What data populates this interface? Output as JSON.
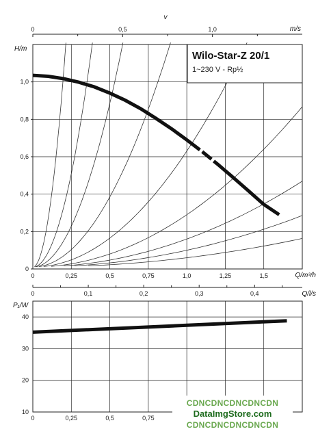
{
  "chart_data": [
    {
      "type": "line",
      "title": "Wilo-Star-Z 20/1",
      "subtitle": "1~230 V - Rp½",
      "xlabel": "Q/m³/h",
      "ylabel": "H/m",
      "xlim": [
        0,
        1.75
      ],
      "ylim": [
        0,
        1.2
      ],
      "x_ticks": [
        0,
        0.25,
        0.5,
        0.75,
        1.0,
        1.25,
        1.5
      ],
      "x_tick_labels": [
        "0",
        "0,25",
        "0,5",
        "0,75",
        "1,0",
        "1,25",
        "1,5"
      ],
      "y_ticks": [
        0,
        0.2,
        0.4,
        0.6,
        0.8,
        1.0
      ],
      "y_tick_labels": [
        "0",
        "0,2",
        "0,4",
        "0,6",
        "0,8",
        "1,0"
      ],
      "grid": true,
      "top_axis": {
        "label": "v",
        "unit": "m/s",
        "max": 1.5,
        "ticks": [
          0,
          0.5,
          1.0
        ],
        "tick_labels": [
          "0",
          "0,5",
          "1,0"
        ]
      },
      "secondary_x_axis": {
        "label": "Q/l/s",
        "max": 0.486,
        "ticks": [
          0,
          0.1,
          0.2,
          0.3,
          0.4
        ],
        "tick_labels": [
          "0",
          "0,1",
          "0,2",
          "0,3",
          "0,4"
        ]
      },
      "series": [
        {
          "x": [
            0,
            0.1,
            0.2,
            0.3,
            0.4,
            0.5,
            0.6,
            0.7,
            0.8,
            0.9,
            1.0,
            1.1,
            1.2,
            1.3,
            1.4,
            1.5,
            1.6
          ],
          "y": [
            1.035,
            1.03,
            1.017,
            0.998,
            0.973,
            0.94,
            0.902,
            0.857,
            0.805,
            0.75,
            0.69,
            0.627,
            0.56,
            0.49,
            0.418,
            0.345,
            0.29
          ]
        }
      ],
      "system_curves": [
        {
          "c": 0.05
        },
        {
          "c": 0.09
        },
        {
          "c": 0.15
        },
        {
          "c": 0.28
        },
        {
          "c": 0.62
        },
        {
          "c": 1.5
        },
        {
          "c": 3.5
        },
        {
          "c": 8
        },
        {
          "c": 26
        }
      ]
    },
    {
      "type": "line",
      "xlabel": "",
      "ylabel": "P₁/W",
      "xlim": [
        0,
        1.75
      ],
      "ylim": [
        10,
        45
      ],
      "x_ticks": [
        0,
        0.25,
        0.5,
        0.75
      ],
      "x_tick_labels": [
        "0",
        "0,25",
        "0,5",
        "0,75"
      ],
      "y_ticks": [
        10,
        20,
        30,
        40
      ],
      "y_tick_labels": [
        "10",
        "20",
        "30",
        "40"
      ],
      "grid": true,
      "series": [
        {
          "x": [
            0,
            1.65
          ],
          "y": [
            35.2,
            38.8
          ]
        }
      ]
    }
  ],
  "watermark": {
    "line1": "CDNCDNCDNCDNCDN",
    "line2": "DataImgStore.com",
    "line3": "CDNCDNCDNCDNCDN"
  }
}
